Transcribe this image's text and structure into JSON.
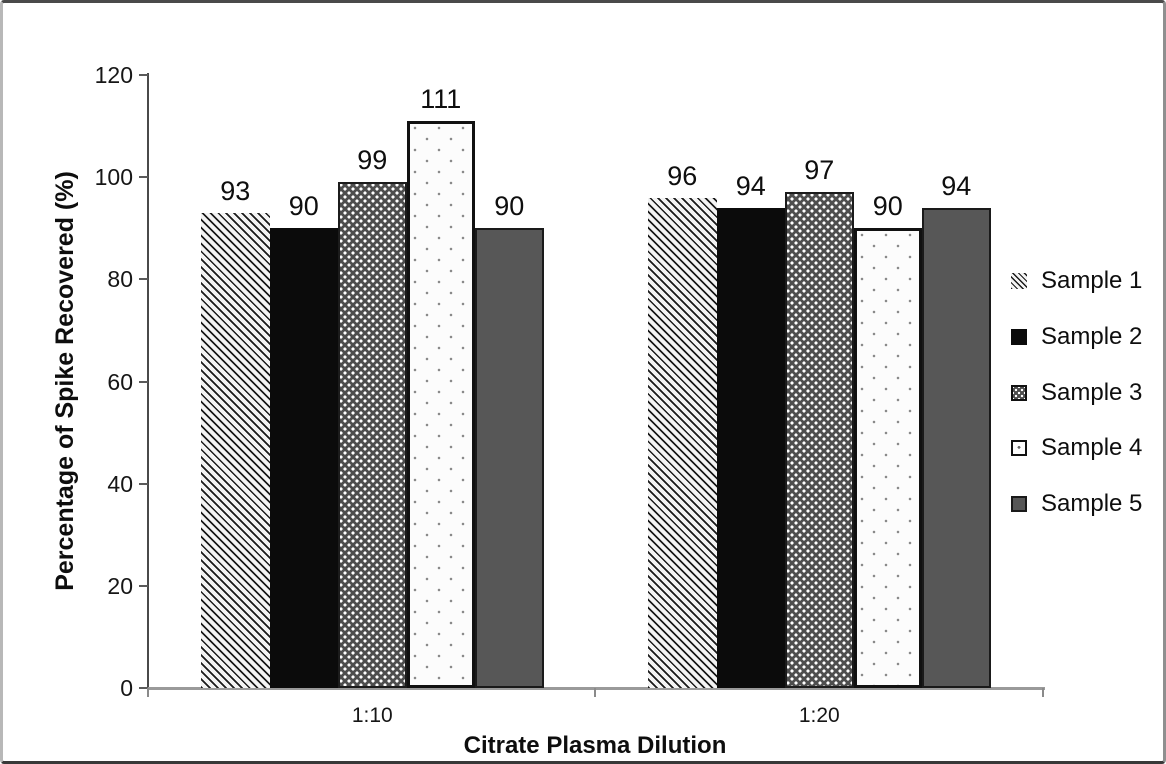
{
  "chart_data": {
    "type": "bar",
    "title": "",
    "xlabel": "Citrate Plasma Dilution",
    "ylabel": "Percentage of Spike Recovered (%)",
    "categories": [
      "1:10",
      "1:20"
    ],
    "series": [
      {
        "name": "Sample 1",
        "pattern": "diagonal-hatch",
        "values": [
          93,
          96
        ]
      },
      {
        "name": "Sample 2",
        "pattern": "solid-black",
        "values": [
          90,
          94
        ]
      },
      {
        "name": "Sample 3",
        "pattern": "checker-dots-dark",
        "values": [
          99,
          97
        ]
      },
      {
        "name": "Sample 4",
        "pattern": "white-dots",
        "values": [
          111,
          90
        ]
      },
      {
        "name": "Sample 5",
        "pattern": "solid-gray",
        "values": [
          90,
          94
        ]
      }
    ],
    "ylim": [
      0,
      120
    ],
    "yticks": [
      0,
      20,
      40,
      60,
      80,
      100,
      120
    ],
    "bar_labels_shown": true,
    "grid": false,
    "legend_position": "right",
    "colors": {
      "solid_black": "#0b0b0b",
      "solid_gray": "#575757",
      "checker_background": "#4e4e4e",
      "axis_line": "#4a4a4a",
      "baseline": "#9a9a9a",
      "text": "#0e0e0e"
    }
  }
}
